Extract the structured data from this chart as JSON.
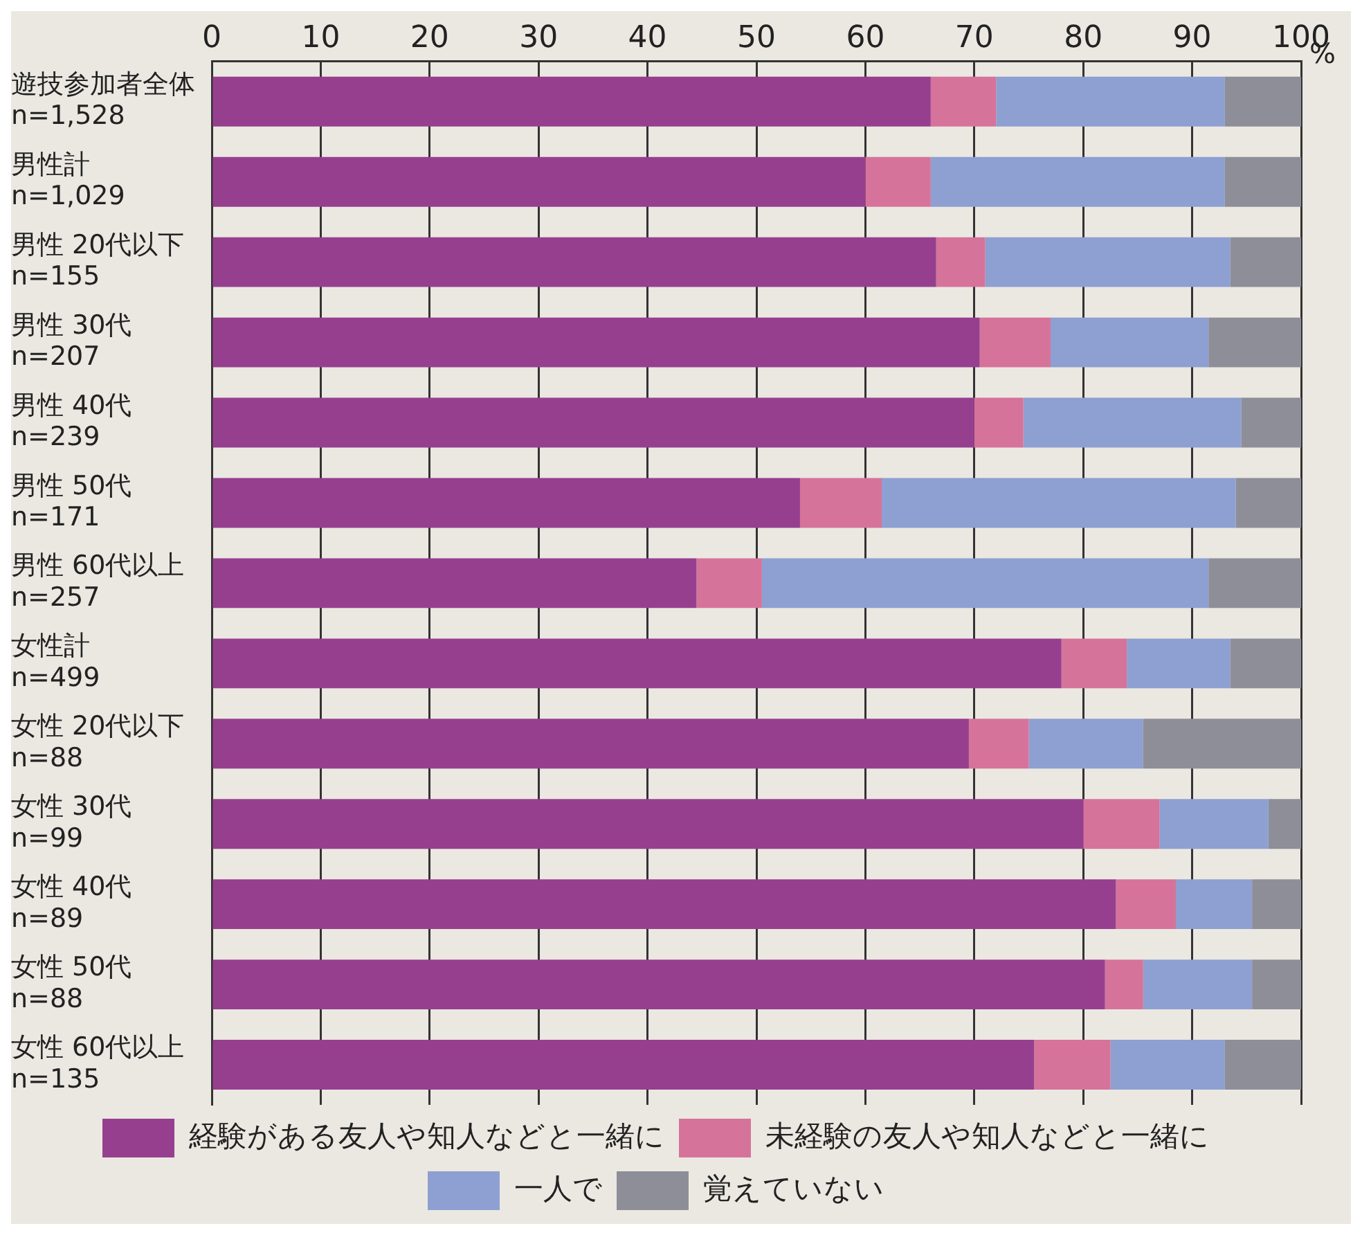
{
  "chart_data": {
    "type": "bar",
    "orientation": "horizontal",
    "stacked": true,
    "xlabel": "%",
    "categories": [
      "遊技参加者全体\nn=1,528",
      "男性計\nn=1,029",
      "男性 20代以下\nn=155",
      "男性 30代\nn=207",
      "男性 40代\nn=239",
      "男性 50代\nn=171",
      "男性 60代以上\nn=257",
      "女性計\nn=499",
      "女性 20代以下\nn=88",
      "女性 30代\nn=99",
      "女性 40代\nn=89",
      "女性 50代\nn=88",
      "女性 60代以上\nn=135"
    ],
    "series": [
      {
        "name": "経験がある友人や知人などと一緒に",
        "color": "#973f8f",
        "values": [
          66,
          60,
          66.5,
          70.5,
          70,
          54,
          44.5,
          78,
          69.5,
          80,
          83,
          82,
          75.5
        ]
      },
      {
        "name": "未経験の友人や知人などと一緒に",
        "color": "#d6739a",
        "values": [
          6,
          6,
          4.5,
          6.5,
          4.5,
          7.5,
          6,
          6,
          5.5,
          7,
          5.5,
          3.5,
          7
        ]
      },
      {
        "name": "一人で",
        "color": "#8e9fd1",
        "values": [
          21,
          27,
          22.5,
          14.5,
          20,
          32.5,
          41,
          9.5,
          10.5,
          10,
          7,
          10,
          10.5
        ]
      },
      {
        "name": "覚えていない",
        "color": "#8e8e98",
        "values": [
          7,
          7,
          6.5,
          8.5,
          5.5,
          6,
          8.5,
          6.5,
          14.5,
          3,
          4.5,
          4.5,
          7
        ]
      }
    ],
    "xlim": [
      0,
      100
    ],
    "xticks": [
      0,
      10,
      20,
      30,
      40,
      50,
      60,
      70,
      80,
      90,
      100
    ],
    "grid": "x",
    "legend": "bottom"
  }
}
